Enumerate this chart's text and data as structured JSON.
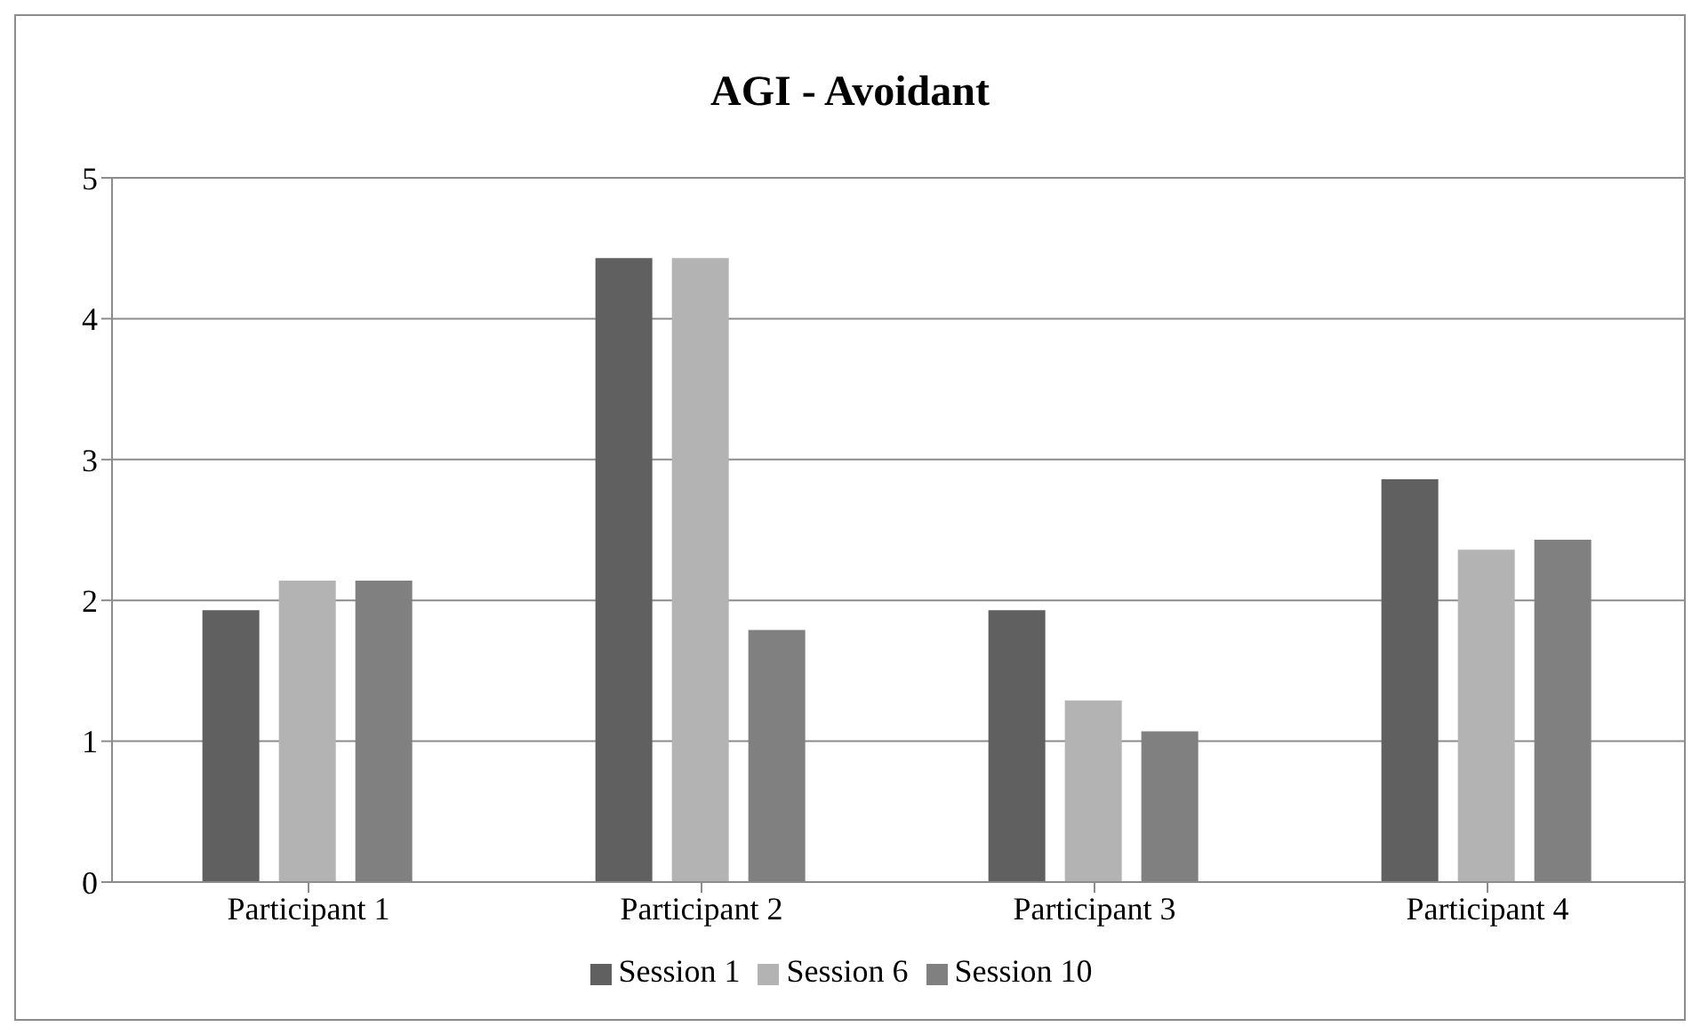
{
  "chart_data": {
    "type": "bar",
    "title": "AGI - Avoidant",
    "categories": [
      "Participant 1",
      "Participant 2",
      "Participant 3",
      "Participant 4"
    ],
    "series": [
      {
        "name": "Session 1",
        "color": "#606060",
        "values": [
          1.93,
          4.43,
          1.93,
          2.86
        ]
      },
      {
        "name": "Session 6",
        "color": "#b3b3b3",
        "values": [
          2.14,
          4.43,
          1.29,
          2.36
        ]
      },
      {
        "name": "Session 10",
        "color": "#808080",
        "values": [
          2.14,
          1.79,
          1.07,
          2.43
        ]
      }
    ],
    "ylim": [
      0,
      5
    ],
    "yticks": [
      0,
      1,
      2,
      3,
      4,
      5
    ],
    "grid": "y",
    "legend": "bottom"
  }
}
